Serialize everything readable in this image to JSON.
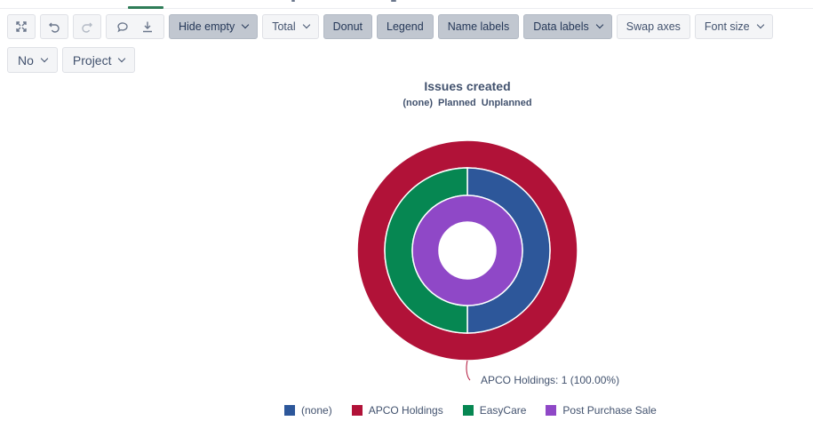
{
  "toolbar": {
    "buttons": [
      {
        "id": "expand",
        "icon": "expand-icon"
      },
      {
        "id": "undo",
        "icon": "undo-icon"
      },
      {
        "id": "redo",
        "icon": "redo-icon"
      },
      {
        "id": "comment",
        "icon": "comment-icon"
      },
      {
        "id": "download",
        "icon": "download-icon"
      }
    ],
    "hide_empty_label": "Hide empty",
    "total_label": "Total",
    "donut_label": "Donut",
    "legend_label": "Legend",
    "name_labels_label": "Name labels",
    "data_labels_label": "Data labels",
    "swap_axes_label": "Swap axes",
    "font_size_label": "Font size"
  },
  "filters": {
    "no_label": "No",
    "project_label": "Project"
  },
  "colors": {
    "none": "#2d579a",
    "apco": "#b11238",
    "easycare": "#068752",
    "post_purchase": "#8f48c7",
    "selected_button": "#c1c7d0",
    "accent": "#2f7d58"
  },
  "chart_data": {
    "type": "pie",
    "variant": "donut",
    "title": "Issues created",
    "subtitle": [
      "(none)",
      "Planned",
      "Unplanned"
    ],
    "rings": [
      {
        "ring": "(none)",
        "slices": [
          {
            "name": "APCO Holdings",
            "value": 1
          }
        ]
      },
      {
        "ring": "Planned",
        "slices": [
          {
            "name": "(none)",
            "value": 1
          },
          {
            "name": "EasyCare",
            "value": 1
          }
        ]
      },
      {
        "ring": "Unplanned",
        "slices": [
          {
            "name": "Post Purchase Sale",
            "value": 1
          }
        ]
      }
    ],
    "legend": [
      "(none)",
      "APCO Holdings",
      "EasyCare",
      "Post Purchase Sale"
    ],
    "legend_position": "bottom",
    "data_label": {
      "name": "APCO Holdings",
      "value_text": "1 (100.00%)",
      "full_text": "APCO Holdings: 1 (100.00%)"
    }
  }
}
